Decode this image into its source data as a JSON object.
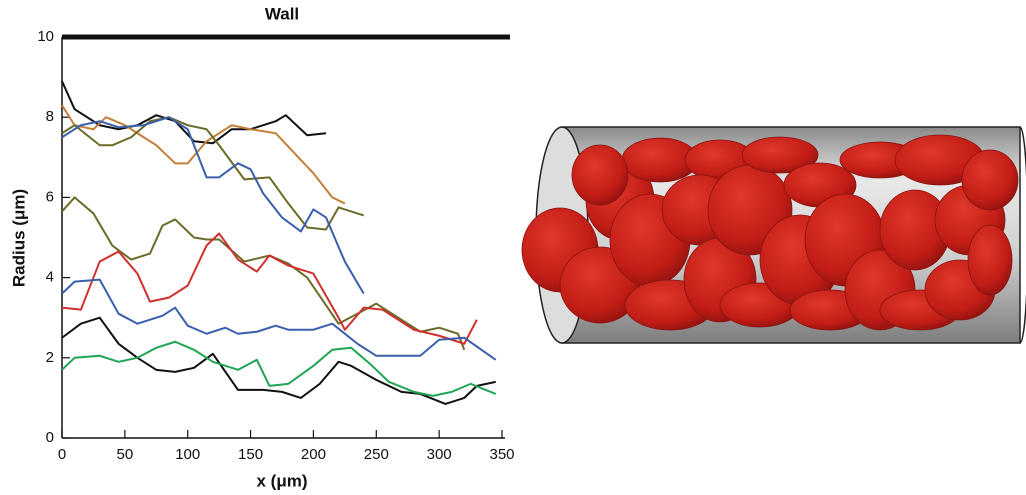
{
  "chart_data": {
    "type": "line",
    "title": "Wall",
    "xlabel": "x (μm)",
    "ylabel": "Radius (μm)",
    "xlim": [
      0,
      350
    ],
    "ylim": [
      0,
      10
    ],
    "xticks": [
      0,
      50,
      100,
      150,
      200,
      250,
      300,
      350
    ],
    "yticks": [
      0,
      2,
      4,
      6,
      8,
      10
    ],
    "series": [
      {
        "color": "#111111",
        "x": [
          0,
          10,
          30,
          45,
          60,
          75,
          90,
          105,
          120,
          135,
          150,
          170,
          178,
          195,
          210
        ],
        "values": [
          8.9,
          8.2,
          7.8,
          7.7,
          7.8,
          8.05,
          7.9,
          7.4,
          7.35,
          7.7,
          7.7,
          7.9,
          8.05,
          7.55,
          7.6
        ]
      },
      {
        "color": "#c47f3a",
        "x": [
          0,
          10,
          25,
          35,
          50,
          60,
          75,
          90,
          100,
          115,
          135,
          150,
          170,
          185,
          200,
          215,
          225
        ],
        "values": [
          8.3,
          7.8,
          7.7,
          8.0,
          7.8,
          7.6,
          7.3,
          6.85,
          6.85,
          7.4,
          7.8,
          7.7,
          7.6,
          7.1,
          6.6,
          6.0,
          5.85
        ]
      },
      {
        "color": "#6b6b2a",
        "x": [
          0,
          10,
          30,
          40,
          55,
          70,
          85,
          100,
          115,
          125,
          145,
          165,
          180,
          195,
          210,
          220,
          240
        ],
        "values": [
          7.6,
          7.8,
          7.3,
          7.3,
          7.5,
          7.9,
          8.0,
          7.8,
          7.7,
          7.3,
          6.45,
          6.5,
          5.85,
          5.25,
          5.2,
          5.75,
          5.55
        ]
      },
      {
        "color": "#3a5fad",
        "x": [
          0,
          15,
          30,
          45,
          65,
          85,
          100,
          115,
          125,
          140,
          150,
          160,
          175,
          190,
          200,
          210,
          225,
          240
        ],
        "values": [
          7.5,
          7.8,
          7.9,
          7.75,
          7.8,
          8.0,
          7.7,
          6.5,
          6.5,
          6.85,
          6.7,
          6.1,
          5.5,
          5.15,
          5.7,
          5.5,
          4.4,
          3.6
        ]
      },
      {
        "color": "#6b6b2a",
        "x": [
          0,
          10,
          25,
          40,
          55,
          70,
          80,
          90,
          105,
          115,
          125,
          145,
          165,
          180,
          195,
          220,
          250,
          265,
          285,
          300,
          315,
          320
        ],
        "values": [
          5.65,
          6.0,
          5.6,
          4.8,
          4.45,
          4.6,
          5.3,
          5.45,
          5.0,
          4.95,
          4.95,
          4.4,
          4.55,
          4.35,
          4.0,
          2.85,
          3.35,
          3.05,
          2.65,
          2.75,
          2.6,
          2.2
        ]
      },
      {
        "color": "#d0302e",
        "x": [
          0,
          15,
          30,
          45,
          60,
          70,
          85,
          100,
          115,
          125,
          140,
          155,
          165,
          180,
          200,
          220,
          225,
          240,
          255,
          280,
          300,
          320,
          330
        ],
        "values": [
          3.25,
          3.2,
          4.4,
          4.65,
          4.1,
          3.4,
          3.5,
          3.8,
          4.8,
          5.1,
          4.45,
          4.15,
          4.55,
          4.3,
          4.1,
          3.0,
          2.7,
          3.25,
          3.2,
          2.7,
          2.55,
          2.35,
          2.95
        ]
      },
      {
        "color": "#3a5fad",
        "x": [
          0,
          10,
          30,
          45,
          60,
          80,
          90,
          100,
          115,
          130,
          140,
          155,
          170,
          180,
          200,
          215,
          235,
          250,
          265,
          285,
          300,
          320,
          345
        ],
        "values": [
          3.6,
          3.9,
          3.95,
          3.1,
          2.85,
          3.05,
          3.25,
          2.8,
          2.6,
          2.75,
          2.6,
          2.65,
          2.8,
          2.7,
          2.7,
          2.85,
          2.35,
          2.05,
          2.05,
          2.05,
          2.45,
          2.5,
          1.95
        ]
      },
      {
        "color": "#111111",
        "x": [
          0,
          15,
          30,
          45,
          60,
          75,
          90,
          105,
          120,
          140,
          160,
          175,
          190,
          205,
          220,
          230,
          250,
          270,
          285,
          305,
          320,
          330,
          345
        ],
        "values": [
          2.5,
          2.85,
          3.0,
          2.35,
          2.0,
          1.7,
          1.65,
          1.75,
          2.1,
          1.2,
          1.2,
          1.15,
          1.0,
          1.35,
          1.9,
          1.8,
          1.45,
          1.15,
          1.1,
          0.85,
          1.0,
          1.3,
          1.4
        ]
      },
      {
        "color": "#1fa555",
        "x": [
          0,
          10,
          30,
          45,
          60,
          75,
          90,
          105,
          120,
          140,
          155,
          165,
          180,
          200,
          215,
          230,
          245,
          260,
          280,
          295,
          310,
          325,
          345
        ],
        "values": [
          1.7,
          2.0,
          2.05,
          1.9,
          2.0,
          2.25,
          2.4,
          2.2,
          1.9,
          1.7,
          1.95,
          1.3,
          1.35,
          1.8,
          2.2,
          2.25,
          1.85,
          1.4,
          1.15,
          1.05,
          1.15,
          1.35,
          1.1
        ]
      }
    ]
  }
}
